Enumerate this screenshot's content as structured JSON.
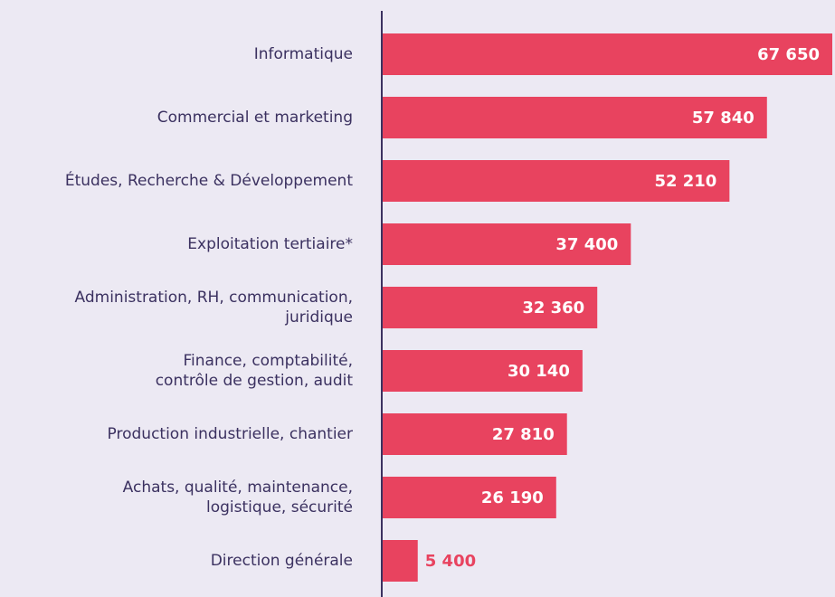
{
  "chart_data": {
    "type": "barh",
    "categories": [
      "Informatique",
      "Commercial et marketing",
      "Études, Recherche & Développement",
      "Exploitation tertiaire*",
      "Administration, RH, communication,\njuridique",
      "Finance, comptabilité,\ncontrôle de gestion, audit",
      "Production industrielle, chantier",
      "Achats, qualité, maintenance,\nlogistique, sécurité",
      "Direction générale"
    ],
    "values": [
      67650,
      57840,
      52210,
      37400,
      32360,
      30140,
      27810,
      26190,
      5400
    ],
    "value_labels": [
      "67 650",
      "57 840",
      "52 210",
      "37 400",
      "32 360",
      "30 140",
      "27 810",
      "26 190",
      "5 400"
    ],
    "color": "#e8435f"
  }
}
